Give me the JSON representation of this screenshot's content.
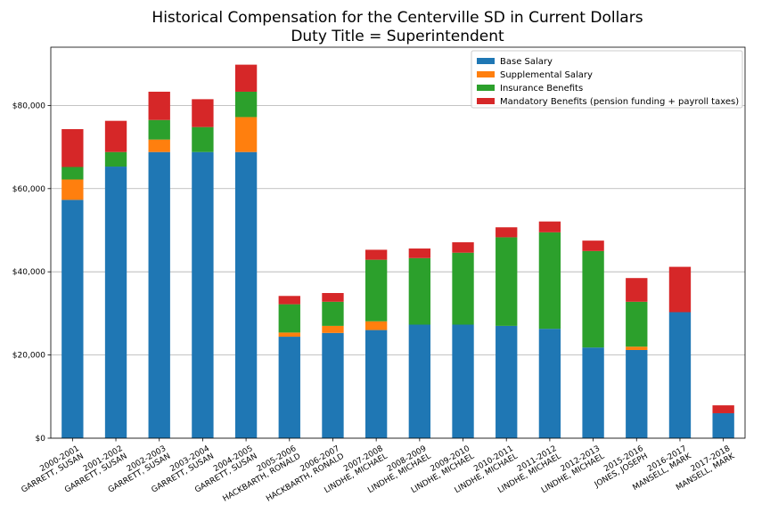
{
  "chart_data": {
    "type": "bar",
    "stacked": true,
    "title": "Historical Compensation for the Centerville SD in Current Dollars",
    "subtitle": "Duty Title = Superintendent",
    "xlabel": "",
    "ylabel": "",
    "ylim": [
      0,
      94000
    ],
    "yticks": [
      0,
      20000,
      40000,
      60000,
      80000
    ],
    "ytick_labels": [
      "$0",
      "$20,000",
      "$40,000",
      "$60,000",
      "$80,000"
    ],
    "grid": "horizontal",
    "legend_position": "top-right",
    "categories": [
      [
        "2000-2001",
        "GARRETT, SUSAN"
      ],
      [
        "2001-2002",
        "GARRETT, SUSAN"
      ],
      [
        "2002-2003",
        "GARRETT, SUSAN"
      ],
      [
        "2003-2004",
        "GARRETT, SUSAN"
      ],
      [
        "2004-2005",
        "GARRETT, SUSAN"
      ],
      [
        "2005-2006",
        "HACKBARTH, RONALD"
      ],
      [
        "2006-2007",
        "HACKBARTH, RONALD"
      ],
      [
        "2007-2008",
        "LINDHE, MICHAEL"
      ],
      [
        "2008-2009",
        "LINDHE, MICHAEL"
      ],
      [
        "2009-2010",
        "LINDHE, MICHAEL"
      ],
      [
        "2010-2011",
        "LINDHE, MICHAEL"
      ],
      [
        "2011-2012",
        "LINDHE, MICHAEL"
      ],
      [
        "2012-2013",
        "LINDHE, MICHAEL"
      ],
      [
        "2015-2016",
        "JONES, JOSEPH"
      ],
      [
        "2016-2017",
        "MANSELL, MARK"
      ],
      [
        "2017-2018",
        "MANSELL, MARK"
      ]
    ],
    "series": [
      {
        "name": "Base Salary",
        "color": "#1f77b4",
        "values": [
          57300,
          65300,
          68800,
          68800,
          68800,
          24400,
          25300,
          26000,
          27300,
          27300,
          27000,
          26300,
          21800,
          21200,
          30300,
          6000
        ]
      },
      {
        "name": "Supplemental Salary",
        "color": "#ff7f0e",
        "values": [
          4900,
          0,
          3000,
          0,
          8400,
          1000,
          1700,
          2100,
          0,
          0,
          0,
          0,
          0,
          800,
          0,
          0
        ]
      },
      {
        "name": "Insurance Benefits",
        "color": "#2ca02c",
        "values": [
          3000,
          3500,
          4700,
          6000,
          6100,
          6800,
          5800,
          14800,
          16000,
          17300,
          21300,
          23200,
          23200,
          10800,
          0,
          0
        ]
      },
      {
        "name": "Mandatory Benefits (pension funding + payroll taxes)",
        "color": "#d62728",
        "values": [
          9100,
          7500,
          6800,
          6700,
          6500,
          2000,
          2100,
          2400,
          2300,
          2500,
          2400,
          2600,
          2500,
          5700,
          10900,
          1900
        ]
      }
    ]
  }
}
